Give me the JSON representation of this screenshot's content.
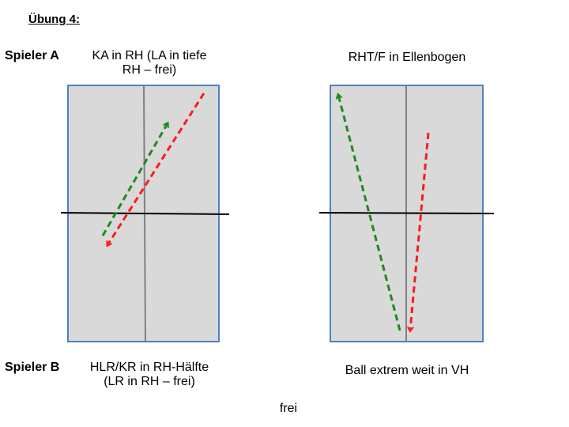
{
  "title": "Übung 4:",
  "left": {
    "player_a": "Spieler A",
    "caption_top": [
      "KA in RH (LA in tiefe",
      "RH – frei)"
    ],
    "player_b": "Spieler B",
    "caption_bottom": [
      "HLR/KR in RH-Hälfte",
      "(LR in RH – frei)"
    ]
  },
  "right": {
    "caption_top": "RHT/F in Ellenbogen",
    "caption_bottom": "Ball extrem weit in VH"
  },
  "footer": "frei",
  "colors": {
    "table_fill": "#d9d9d9",
    "table_border": "#4f81bd",
    "centerline": "#808080",
    "net": "#000000",
    "arrow_green": "#1e8a1e",
    "arrow_red": "#ff1a1a"
  }
}
